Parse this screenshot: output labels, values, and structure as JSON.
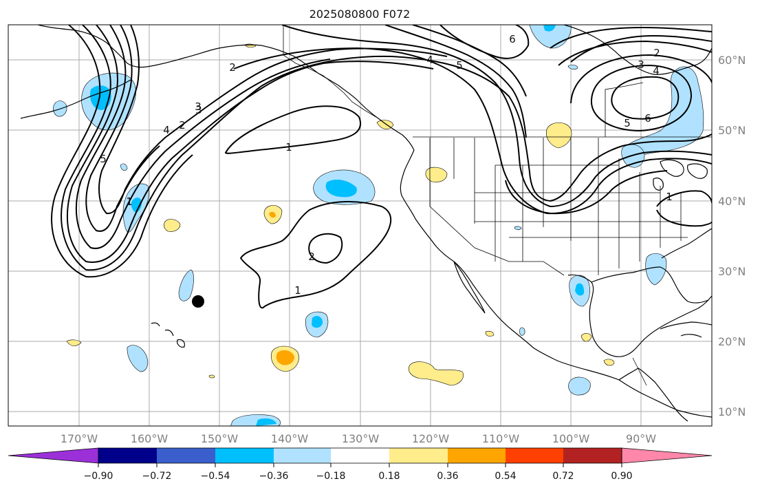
{
  "title": "2025080800 F072",
  "map": {
    "lon_labels": [
      "170°W",
      "160°W",
      "150°W",
      "140°W",
      "130°W",
      "120°W",
      "110°W",
      "100°W",
      "90°W"
    ],
    "lat_labels": [
      "60°N",
      "50°N",
      "40°N",
      "30°N",
      "20°N",
      "10°N"
    ],
    "contour_labels": [
      "2",
      "3",
      "4",
      "5",
      "6",
      "6",
      "5",
      "4",
      "3",
      "2",
      "1",
      "1",
      "5",
      "4",
      "3",
      "2",
      "1",
      "1",
      "2",
      "1",
      "6",
      "5",
      "4"
    ],
    "marker": "storm-position-dot"
  },
  "colorbar": {
    "tick_labels": [
      "−0.90",
      "−0.72",
      "−0.54",
      "−0.36",
      "−0.18",
      "0.18",
      "0.36",
      "0.54",
      "0.72",
      "0.90"
    ],
    "colors": [
      "#9b30d9",
      "#00008b",
      "#3a5fcd",
      "#00bfff",
      "#b0e2ff",
      "#ffffff",
      "#ffec8b",
      "#ffa500",
      "#ff4000",
      "#b22222",
      "#ff88aa"
    ]
  },
  "colors": {
    "light_blue": "#b0e2ff",
    "blue": "#00bfff",
    "yellow": "#ffec8b",
    "orange": "#ffa500"
  }
}
